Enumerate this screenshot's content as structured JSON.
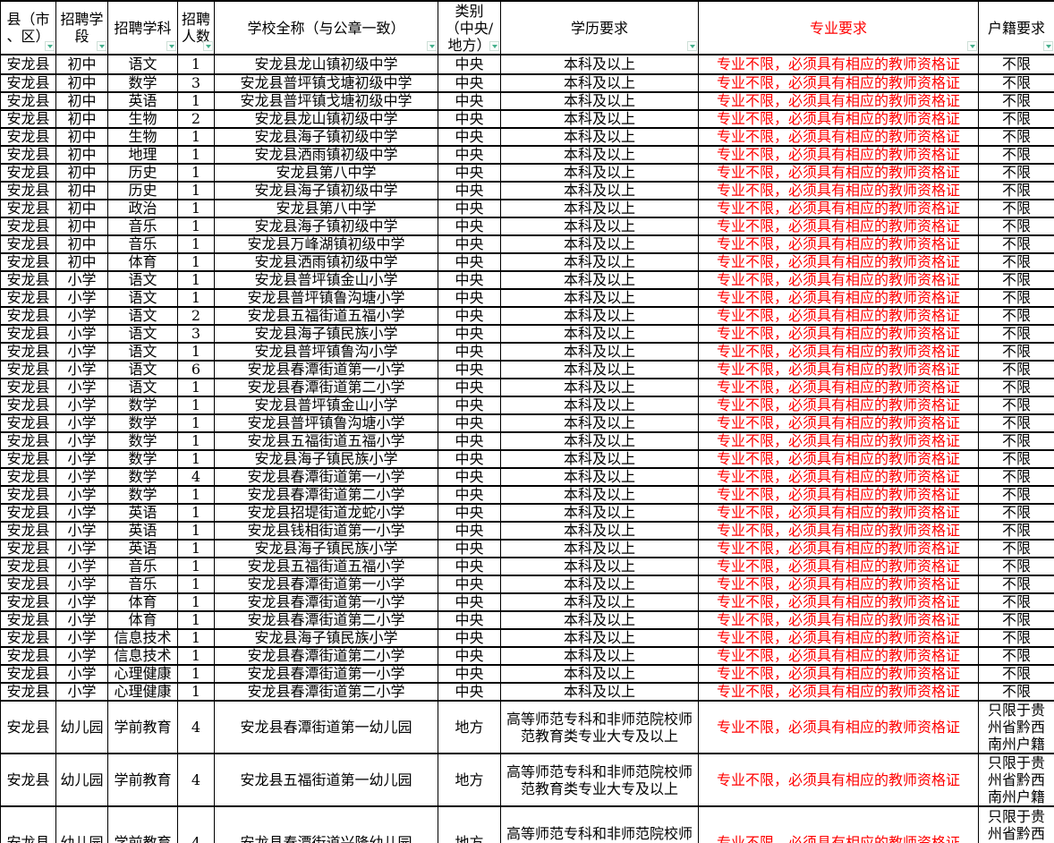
{
  "colors": {
    "grid_border": "#000000",
    "major_requirement_text": "#ff0000",
    "filter_arrow": "#45b08c",
    "cell_background": "#ffffff"
  },
  "icons": {
    "header_filter": "filter-dropdown-arrow"
  },
  "table": {
    "columns": [
      {
        "key": "county",
        "label": "县（市\n、区）"
      },
      {
        "key": "stage",
        "label": "招聘学\n段"
      },
      {
        "key": "subject",
        "label": "招聘学科"
      },
      {
        "key": "count",
        "label": "招聘\n人数"
      },
      {
        "key": "school",
        "label": "学校全称（与公章一致）"
      },
      {
        "key": "category",
        "label": "类别\n（中央/\n地方）"
      },
      {
        "key": "education",
        "label": "学历要求"
      },
      {
        "key": "major",
        "label": "专业要求",
        "red": true
      },
      {
        "key": "hukou",
        "label": "户籍要求"
      }
    ],
    "rows": [
      [
        "安龙县",
        "初中",
        "语文",
        "1",
        "安龙县龙山镇初级中学",
        "中央",
        "本科及以上",
        "专业不限，必须具有相应的教师资格证",
        "不限"
      ],
      [
        "安龙县",
        "初中",
        "数学",
        "3",
        "安龙县普坪镇戈塘初级中学",
        "中央",
        "本科及以上",
        "专业不限，必须具有相应的教师资格证",
        "不限"
      ],
      [
        "安龙县",
        "初中",
        "英语",
        "1",
        "安龙县普坪镇戈塘初级中学",
        "中央",
        "本科及以上",
        "专业不限，必须具有相应的教师资格证",
        "不限"
      ],
      [
        "安龙县",
        "初中",
        "生物",
        "2",
        "安龙县龙山镇初级中学",
        "中央",
        "本科及以上",
        "专业不限，必须具有相应的教师资格证",
        "不限"
      ],
      [
        "安龙县",
        "初中",
        "生物",
        "1",
        "安龙县海子镇初级中学",
        "中央",
        "本科及以上",
        "专业不限，必须具有相应的教师资格证",
        "不限"
      ],
      [
        "安龙县",
        "初中",
        "地理",
        "1",
        "安龙县洒雨镇初级中学",
        "中央",
        "本科及以上",
        "专业不限，必须具有相应的教师资格证",
        "不限"
      ],
      [
        "安龙县",
        "初中",
        "历史",
        "1",
        "安龙县第八中学",
        "中央",
        "本科及以上",
        "专业不限，必须具有相应的教师资格证",
        "不限"
      ],
      [
        "安龙县",
        "初中",
        "历史",
        "1",
        "安龙县海子镇初级中学",
        "中央",
        "本科及以上",
        "专业不限，必须具有相应的教师资格证",
        "不限"
      ],
      [
        "安龙县",
        "初中",
        "政治",
        "1",
        "安龙县第八中学",
        "中央",
        "本科及以上",
        "专业不限，必须具有相应的教师资格证",
        "不限"
      ],
      [
        "安龙县",
        "初中",
        "音乐",
        "1",
        "安龙县海子镇初级中学",
        "中央",
        "本科及以上",
        "专业不限，必须具有相应的教师资格证",
        "不限"
      ],
      [
        "安龙县",
        "初中",
        "音乐",
        "1",
        "安龙县万峰湖镇初级中学",
        "中央",
        "本科及以上",
        "专业不限，必须具有相应的教师资格证",
        "不限"
      ],
      [
        "安龙县",
        "初中",
        "体育",
        "1",
        "安龙县洒雨镇初级中学",
        "中央",
        "本科及以上",
        "专业不限，必须具有相应的教师资格证",
        "不限"
      ],
      [
        "安龙县",
        "小学",
        "语文",
        "1",
        "安龙县普坪镇金山小学",
        "中央",
        "本科及以上",
        "专业不限，必须具有相应的教师资格证",
        "不限"
      ],
      [
        "安龙县",
        "小学",
        "语文",
        "1",
        "安龙县普坪镇鲁沟塘小学",
        "中央",
        "本科及以上",
        "专业不限，必须具有相应的教师资格证",
        "不限"
      ],
      [
        "安龙县",
        "小学",
        "语文",
        "2",
        "安龙县五福街道五福小学",
        "中央",
        "本科及以上",
        "专业不限，必须具有相应的教师资格证",
        "不限"
      ],
      [
        "安龙县",
        "小学",
        "语文",
        "3",
        "安龙县海子镇民族小学",
        "中央",
        "本科及以上",
        "专业不限，必须具有相应的教师资格证",
        "不限"
      ],
      [
        "安龙县",
        "小学",
        "语文",
        "1",
        "安龙县普坪镇鲁沟小学",
        "中央",
        "本科及以上",
        "专业不限，必须具有相应的教师资格证",
        "不限"
      ],
      [
        "安龙县",
        "小学",
        "语文",
        "6",
        "安龙县春潭街道第一小学",
        "中央",
        "本科及以上",
        "专业不限，必须具有相应的教师资格证",
        "不限"
      ],
      [
        "安龙县",
        "小学",
        "语文",
        "1",
        "安龙县春潭街道第二小学",
        "中央",
        "本科及以上",
        "专业不限，必须具有相应的教师资格证",
        "不限"
      ],
      [
        "安龙县",
        "小学",
        "数学",
        "1",
        "安龙县普坪镇金山小学",
        "中央",
        "本科及以上",
        "专业不限，必须具有相应的教师资格证",
        "不限"
      ],
      [
        "安龙县",
        "小学",
        "数学",
        "1",
        "安龙县普坪镇鲁沟塘小学",
        "中央",
        "本科及以上",
        "专业不限，必须具有相应的教师资格证",
        "不限"
      ],
      [
        "安龙县",
        "小学",
        "数学",
        "1",
        "安龙县五福街道五福小学",
        "中央",
        "本科及以上",
        "专业不限，必须具有相应的教师资格证",
        "不限"
      ],
      [
        "安龙县",
        "小学",
        "数学",
        "1",
        "安龙县海子镇民族小学",
        "中央",
        "本科及以上",
        "专业不限，必须具有相应的教师资格证",
        "不限"
      ],
      [
        "安龙县",
        "小学",
        "数学",
        "4",
        "安龙县春潭街道第一小学",
        "中央",
        "本科及以上",
        "专业不限，必须具有相应的教师资格证",
        "不限"
      ],
      [
        "安龙县",
        "小学",
        "数学",
        "1",
        "安龙县春潭街道第二小学",
        "中央",
        "本科及以上",
        "专业不限，必须具有相应的教师资格证",
        "不限"
      ],
      [
        "安龙县",
        "小学",
        "英语",
        "1",
        "安龙县招堤街道龙蛇小学",
        "中央",
        "本科及以上",
        "专业不限，必须具有相应的教师资格证",
        "不限"
      ],
      [
        "安龙县",
        "小学",
        "英语",
        "1",
        "安龙县钱相街道第一小学",
        "中央",
        "本科及以上",
        "专业不限，必须具有相应的教师资格证",
        "不限"
      ],
      [
        "安龙县",
        "小学",
        "英语",
        "1",
        "安龙县海子镇民族小学",
        "中央",
        "本科及以上",
        "专业不限，必须具有相应的教师资格证",
        "不限"
      ],
      [
        "安龙县",
        "小学",
        "音乐",
        "1",
        "安龙县五福街道五福小学",
        "中央",
        "本科及以上",
        "专业不限，必须具有相应的教师资格证",
        "不限"
      ],
      [
        "安龙县",
        "小学",
        "音乐",
        "1",
        "安龙县春潭街道第一小学",
        "中央",
        "本科及以上",
        "专业不限，必须具有相应的教师资格证",
        "不限"
      ],
      [
        "安龙县",
        "小学",
        "体育",
        "1",
        "安龙县春潭街道第一小学",
        "中央",
        "本科及以上",
        "专业不限，必须具有相应的教师资格证",
        "不限"
      ],
      [
        "安龙县",
        "小学",
        "体育",
        "1",
        "安龙县春潭街道第二小学",
        "中央",
        "本科及以上",
        "专业不限，必须具有相应的教师资格证",
        "不限"
      ],
      [
        "安龙县",
        "小学",
        "信息技术",
        "1",
        "安龙县海子镇民族小学",
        "中央",
        "本科及以上",
        "专业不限，必须具有相应的教师资格证",
        "不限"
      ],
      [
        "安龙县",
        "小学",
        "信息技术",
        "1",
        "安龙县春潭街道第二小学",
        "中央",
        "本科及以上",
        "专业不限，必须具有相应的教师资格证",
        "不限"
      ],
      [
        "安龙县",
        "小学",
        "心理健康",
        "1",
        "安龙县春潭街道第一小学",
        "中央",
        "本科及以上",
        "专业不限，必须具有相应的教师资格证",
        "不限"
      ],
      [
        "安龙县",
        "小学",
        "心理健康",
        "1",
        "安龙县春潭街道第二小学",
        "中央",
        "本科及以上",
        "专业不限，必须具有相应的教师资格证",
        "不限"
      ],
      [
        "安龙县",
        "幼儿园",
        "学前教育",
        "4",
        "安龙县春潭街道第一幼儿园",
        "地方",
        "高等师范专科和非师范院校师范教育类专业大专及以上",
        "专业不限，必须具有相应的教师资格证",
        "只限于贵州省黔西南州户籍"
      ],
      [
        "安龙县",
        "幼儿园",
        "学前教育",
        "4",
        "安龙县五福街道第一幼儿园",
        "地方",
        "高等师范专科和非师范院校师范教育类专业大专及以上",
        "专业不限，必须具有相应的教师资格证",
        "只限于贵州省黔西南州户籍"
      ],
      [
        "安龙县",
        "幼儿园",
        "学前教育",
        "4",
        "安龙县春潭街道兴隆幼儿园",
        "地方",
        "高等师范专科和非师范院校师范教育类专业大专及以上",
        "专业不限，必须具有相应的教师资格证",
        "只限于贵州省黔西南州户籍考生报考"
      ]
    ]
  }
}
